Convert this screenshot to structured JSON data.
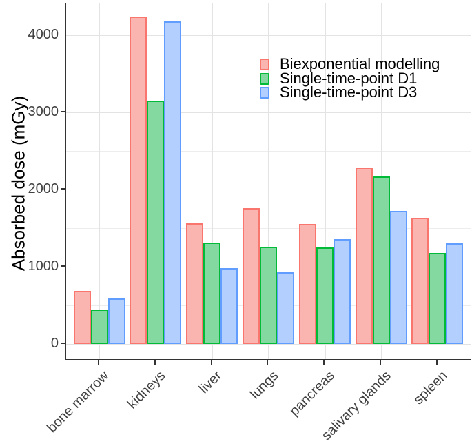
{
  "chart_data": {
    "type": "bar",
    "title": "",
    "xlabel": "",
    "ylabel": "Absorbed dose (mGy)",
    "categories": [
      "bone marrow",
      "kidneys",
      "liver",
      "lungs",
      "pancreas",
      "salivary glands",
      "spleen"
    ],
    "series": [
      {
        "name": "Biexponential modelling",
        "stroke": "#F8766D",
        "fill": "#FBB5B0",
        "values": [
          690,
          4240,
          1560,
          1760,
          1550,
          2280,
          1630
        ]
      },
      {
        "name": "Single-time-point D1",
        "stroke": "#00BA38",
        "fill": "#84D9A1",
        "values": [
          450,
          3150,
          1310,
          1260,
          1250,
          2170,
          1180
        ]
      },
      {
        "name": "Single-time-point D3",
        "stroke": "#619CFF",
        "fill": "#B3CFFE",
        "values": [
          590,
          4170,
          980,
          930,
          1360,
          1720,
          1300
        ]
      }
    ],
    "ylim": [
      0,
      4430
    ],
    "yticks": [
      0,
      1000,
      2000,
      3000,
      4000
    ],
    "yticks_minor": [
      500,
      1500,
      2500,
      3500
    ],
    "grid": "on",
    "legend_position": "inside-top-right",
    "colors": {
      "grid_major": "#E3E3E3",
      "grid_minor": "#EDEDED",
      "panel_border": "#333333",
      "tick_text": "#404040"
    }
  }
}
